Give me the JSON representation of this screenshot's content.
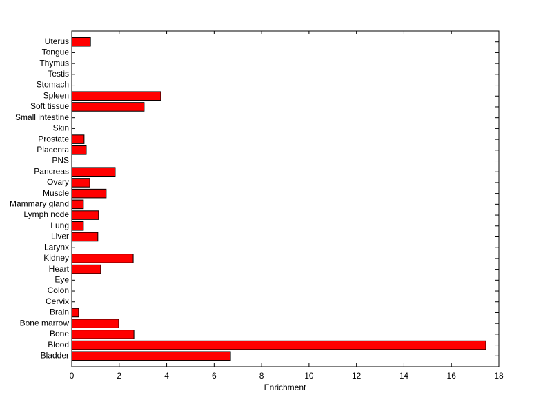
{
  "chart_data": {
    "type": "barh",
    "x_label": "Enrichment",
    "categories": [
      "Bladder",
      "Blood",
      "Bone",
      "Bone marrow",
      "Brain",
      "Cervix",
      "Colon",
      "Eye",
      "Heart",
      "Kidney",
      "Larynx",
      "Liver",
      "Lung",
      "Lymph node",
      "Mammary gland",
      "Muscle",
      "Ovary",
      "Pancreas",
      "PNS",
      "Placenta",
      "Prostate",
      "Skin",
      "Small intestine",
      "Soft tissue",
      "Spleen",
      "Stomach",
      "Testis",
      "Thymus",
      "Tongue",
      "Uterus"
    ],
    "values": [
      6.69,
      17.45,
      2.62,
      1.98,
      0.29,
      0,
      0,
      0,
      1.22,
      2.59,
      0,
      1.1,
      0.49,
      1.13,
      0.49,
      1.45,
      0.76,
      1.83,
      0,
      0.61,
      0.52,
      0,
      0,
      3.05,
      3.75,
      0,
      0,
      0,
      0,
      0.79
    ],
    "color": "#ff0000",
    "xlim": [
      0,
      18
    ],
    "xticks": [
      0,
      2,
      4,
      6,
      8,
      10,
      12,
      14,
      16,
      18
    ]
  }
}
